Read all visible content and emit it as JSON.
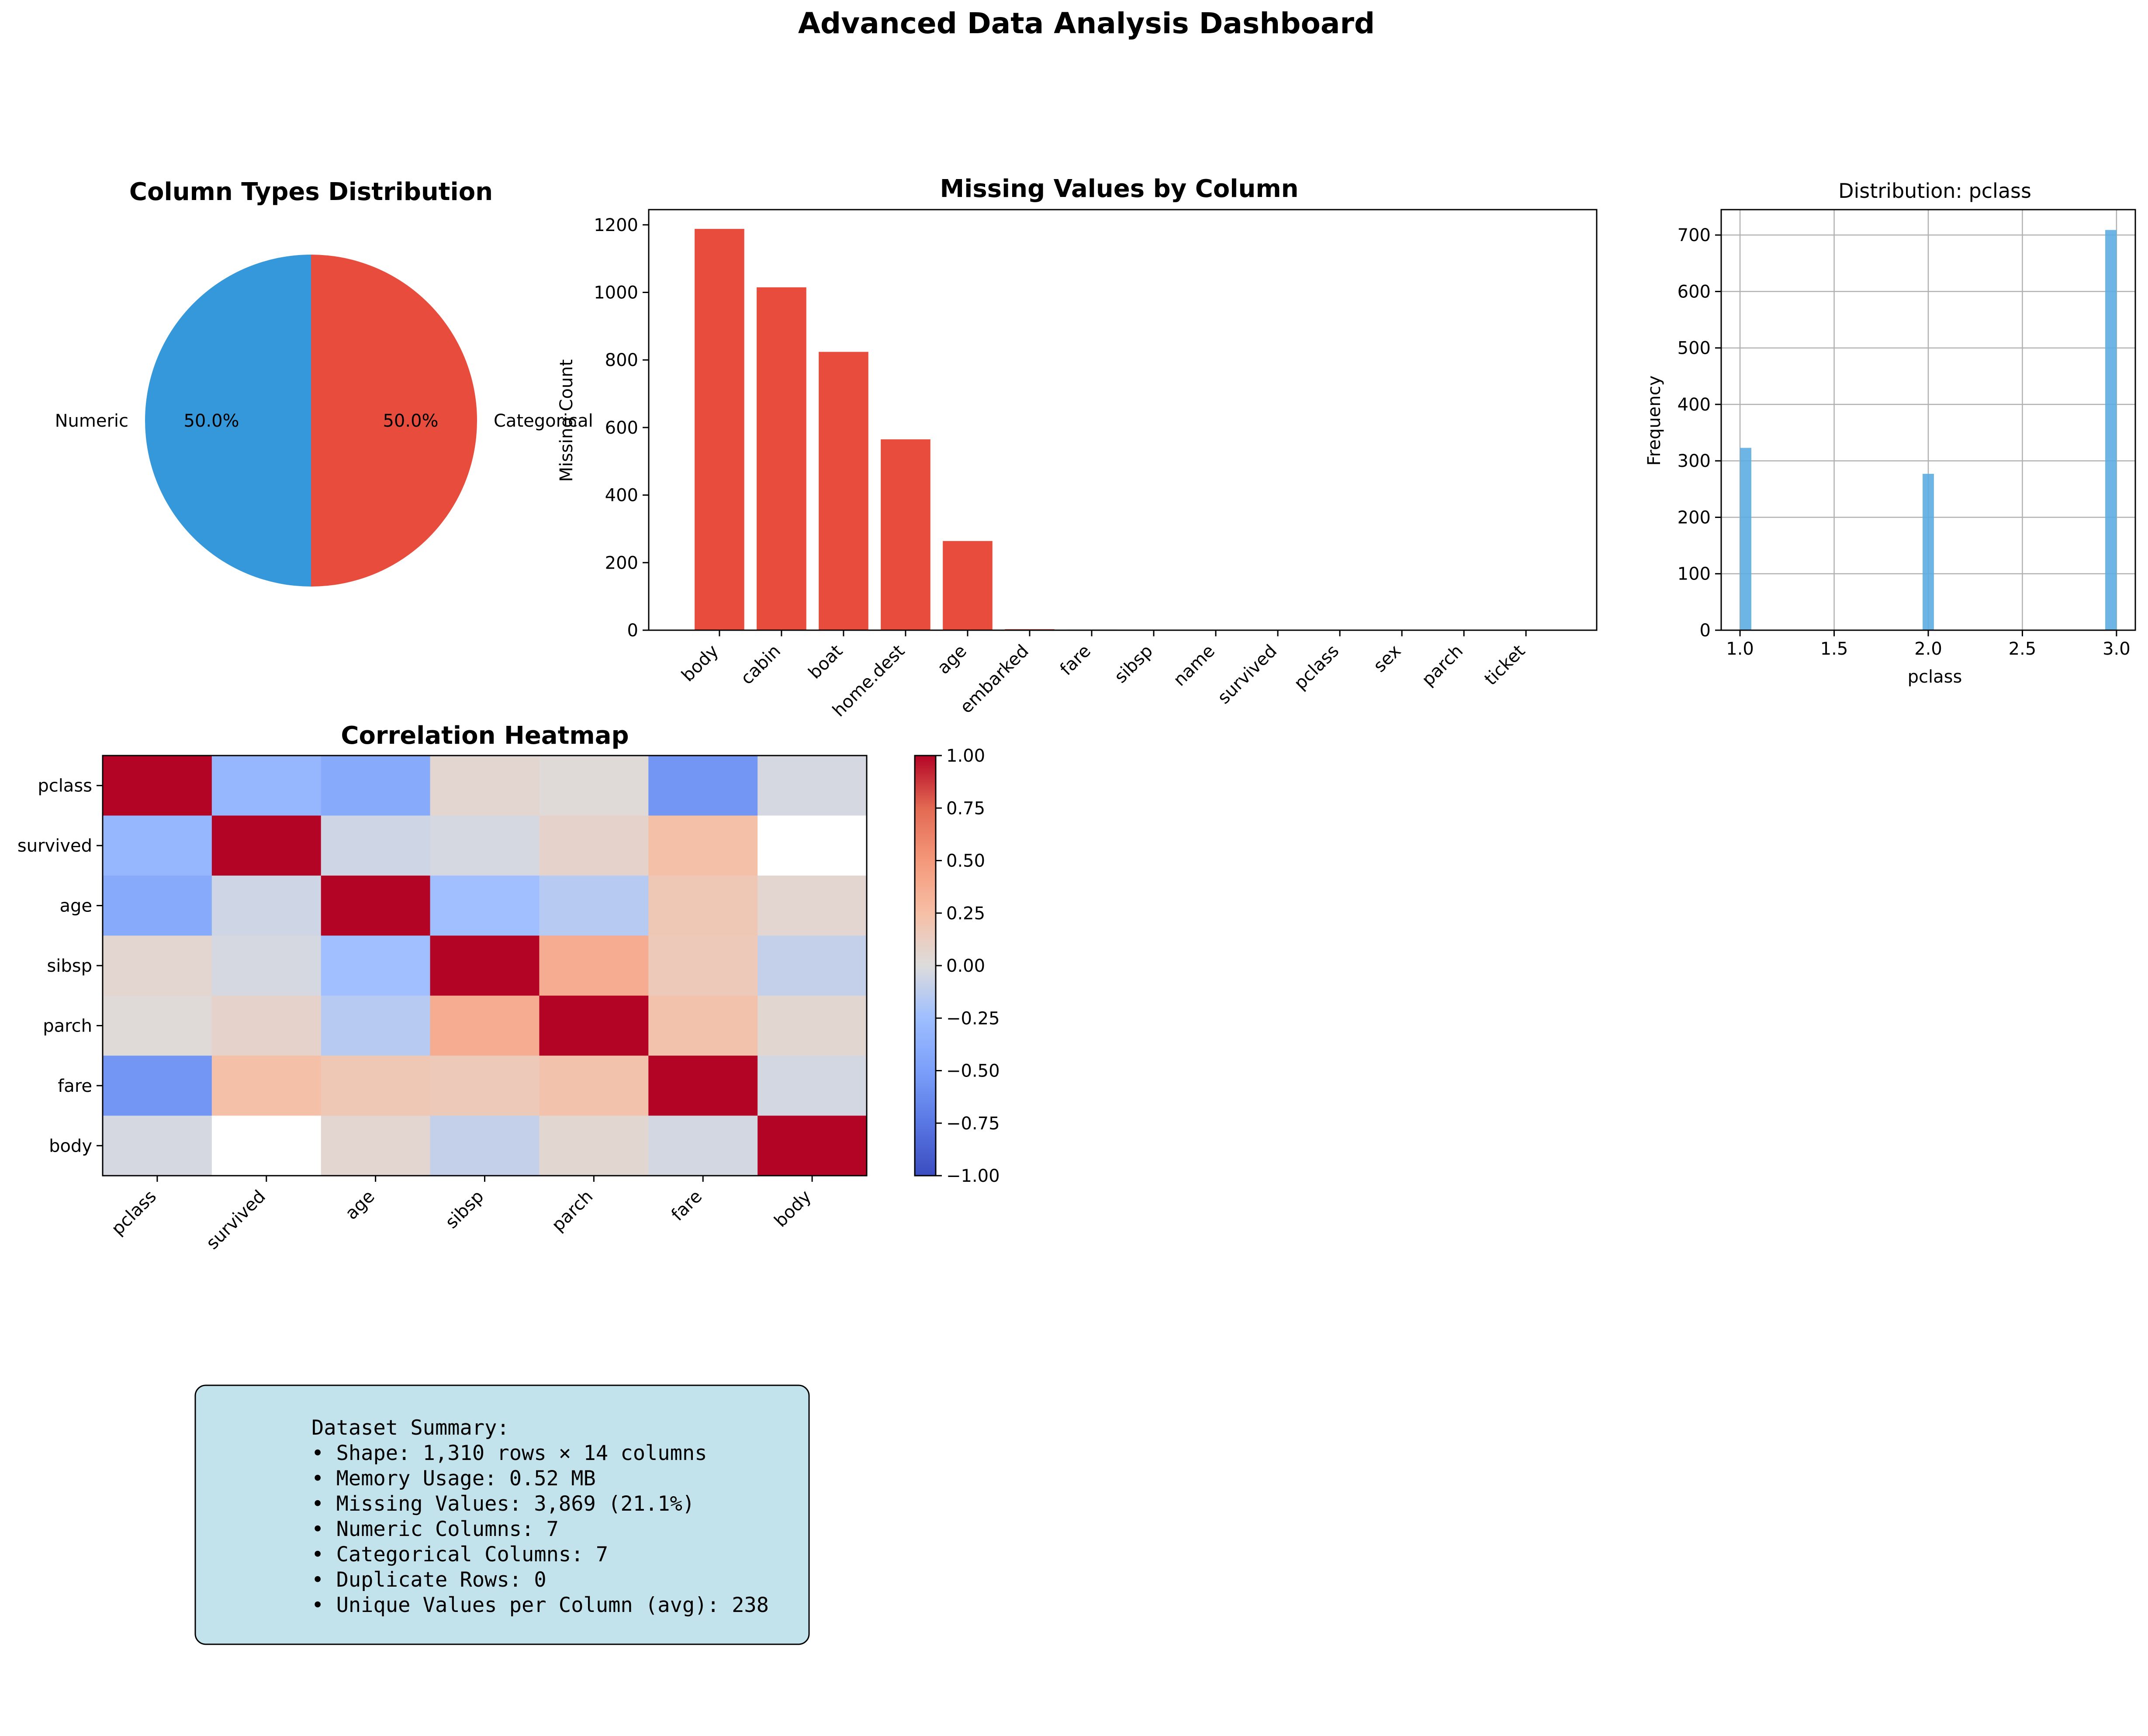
{
  "suptitle": "Advanced Data Analysis Dashboard",
  "chart_data": [
    {
      "type": "pie",
      "title": "Column Types Distribution",
      "labels": [
        "Numeric",
        "Categorical"
      ],
      "values": [
        50.0,
        50.0
      ],
      "pct_labels": [
        "50.0%",
        "50.0%"
      ],
      "colors": [
        "#3498db",
        "#e74c3c"
      ]
    },
    {
      "type": "bar",
      "title": "Missing Values by Column",
      "xlabel": "",
      "ylabel": "Missing Count",
      "categories": [
        "body",
        "cabin",
        "boat",
        "home.dest",
        "age",
        "embarked",
        "fare",
        "sibsp",
        "name",
        "survived",
        "pclass",
        "sex",
        "parch",
        "ticket"
      ],
      "values": [
        1188,
        1015,
        824,
        565,
        264,
        3,
        2,
        1,
        1,
        1,
        1,
        1,
        1,
        1
      ],
      "ylim": [
        0,
        1245
      ],
      "yticks": [
        0,
        200,
        400,
        600,
        800,
        1000,
        1200
      ],
      "color": "#e74c3c"
    },
    {
      "type": "bar",
      "title": "Distribution: pclass",
      "xlabel": "pclass",
      "ylabel": "Frequency",
      "x": [
        1.0,
        2.0,
        3.0
      ],
      "values": [
        323,
        277,
        709
      ],
      "xlim": [
        0.9,
        3.1
      ],
      "ylim": [
        0,
        745
      ],
      "xticks": [
        1.0,
        1.5,
        2.0,
        2.5,
        3.0
      ],
      "xtick_labels": [
        "1.0",
        "1.5",
        "2.0",
        "2.5",
        "3.0"
      ],
      "yticks": [
        0,
        100,
        200,
        300,
        400,
        500,
        600,
        700
      ],
      "grid": true,
      "color": "#5dade2"
    },
    {
      "type": "heatmap",
      "title": "Correlation Heatmap",
      "labels": [
        "pclass",
        "survived",
        "age",
        "sibsp",
        "parch",
        "fare",
        "body"
      ],
      "matrix": [
        [
          1.0,
          -0.31,
          -0.41,
          0.06,
          0.02,
          -0.56,
          -0.03
        ],
        [
          -0.31,
          1.0,
          -0.06,
          -0.03,
          0.08,
          0.24,
          null
        ],
        [
          -0.41,
          -0.06,
          1.0,
          -0.24,
          -0.15,
          0.18,
          0.06
        ],
        [
          0.06,
          -0.03,
          -0.24,
          1.0,
          0.37,
          0.16,
          -0.1
        ],
        [
          0.02,
          0.08,
          -0.15,
          0.37,
          1.0,
          0.22,
          0.05
        ],
        [
          -0.56,
          0.24,
          0.18,
          0.16,
          0.22,
          1.0,
          -0.04
        ],
        [
          -0.03,
          null,
          0.06,
          -0.1,
          0.05,
          -0.04,
          1.0
        ]
      ],
      "vmin": -1.0,
      "vmax": 1.0,
      "colormap": "coolwarm",
      "colorbar_ticks": [
        -1.0,
        -0.75,
        -0.5,
        -0.25,
        0.0,
        0.25,
        0.5,
        0.75,
        1.0
      ],
      "colorbar_tick_labels": [
        "−1.00",
        "−0.75",
        "−0.50",
        "−0.25",
        "0.00",
        "0.25",
        "0.50",
        "0.75",
        "1.00"
      ]
    }
  ],
  "summary": {
    "lines": [
      "Dataset Summary:",
      "• Shape: 1,310 rows × 14 columns",
      "• Memory Usage: 0.52 MB",
      "• Missing Values: 3,869 (21.1%)",
      "• Numeric Columns: 7",
      "• Categorical Columns: 7",
      "• Duplicate Rows: 0",
      "• Unique Values per Column (avg): 238"
    ]
  }
}
